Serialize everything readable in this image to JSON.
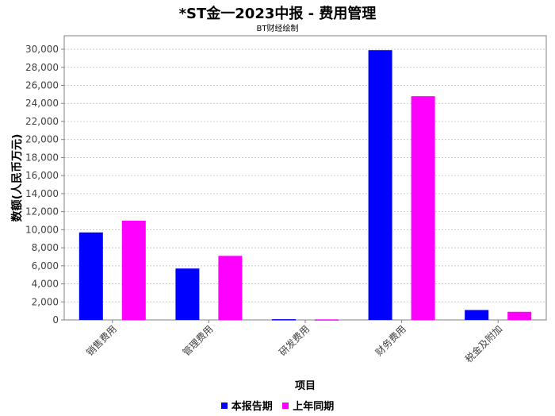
{
  "title": "*ST金一2023中报 - 费用管理",
  "subtitle": "BT财经绘制",
  "chart_data": {
    "type": "bar",
    "title": "*ST金一2023中报 - 费用管理",
    "subtitle": "BT财经绘制",
    "xlabel": "项目",
    "ylabel": "数额(人民币万元)",
    "categories": [
      "销售费用",
      "管理费用",
      "研发费用",
      "财务费用",
      "税金及附加"
    ],
    "series": [
      {
        "name": "本报告期",
        "color": "#0000ff",
        "values": [
          9700,
          5700,
          80,
          29900,
          1100
        ]
      },
      {
        "name": "上年同期",
        "color": "#ff00ff",
        "values": [
          11000,
          7100,
          60,
          24800,
          900
        ]
      }
    ],
    "ylim": [
      0,
      31500
    ],
    "yticks": [
      "0",
      "2,000",
      "4,000",
      "6,000",
      "8,000",
      "10,000",
      "12,000",
      "14,000",
      "16,000",
      "18,000",
      "20,000",
      "22,000",
      "24,000",
      "26,000",
      "28,000",
      "30,000"
    ],
    "ytick_values": [
      0,
      2000,
      4000,
      6000,
      8000,
      10000,
      12000,
      14000,
      16000,
      18000,
      20000,
      22000,
      24000,
      26000,
      28000,
      30000
    ],
    "grid": true,
    "legend_position": "bottom"
  }
}
